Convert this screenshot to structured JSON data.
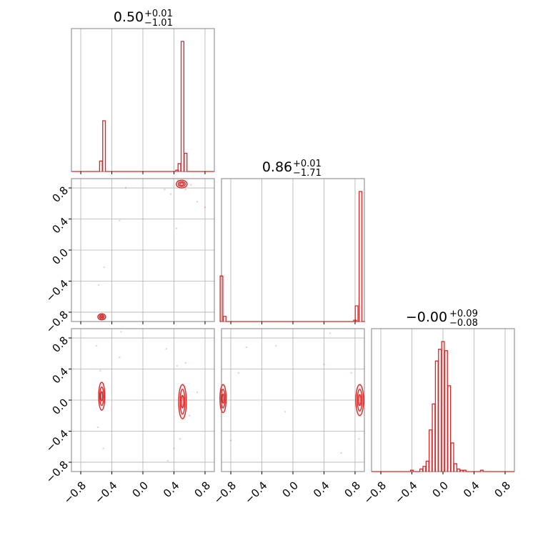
{
  "colors": {
    "line": "#d62728",
    "grid": "#b0b0b0",
    "axis": "#808080",
    "text": "#000000"
  },
  "chart_data": {
    "type": "corner",
    "grid": true,
    "tick_labels": [
      "−0.8",
      "−0.4",
      "0.0",
      "0.4",
      "0.8"
    ],
    "tick_values": [
      -0.8,
      -0.4,
      0.0,
      0.4,
      0.8
    ],
    "titles": [
      {
        "value": "0.50",
        "plus": "+0.01",
        "minus": "−1.01"
      },
      {
        "value": "0.86",
        "plus": "+0.01",
        "minus": "−1.71"
      },
      {
        "value": "−0.00",
        "plus": "+0.09",
        "minus": "−0.08"
      }
    ],
    "params": [
      {
        "range": [
          -0.92,
          0.92
        ]
      },
      {
        "range": [
          -0.92,
          0.92
        ]
      },
      {
        "range": [
          -0.92,
          0.92
        ]
      }
    ],
    "histograms": [
      {
        "param": 0,
        "bins": [
          {
            "x": -0.54,
            "h": 0.08
          },
          {
            "x": -0.5,
            "h": 0.39
          },
          {
            "x": -0.46,
            "h": 0.0
          },
          {
            "x": 0.44,
            "h": 0.01
          },
          {
            "x": 0.47,
            "h": 0.06
          },
          {
            "x": 0.51,
            "h": 1.0
          },
          {
            "x": 0.55,
            "h": 0.14
          },
          {
            "x": 0.59,
            "h": 0.0
          }
        ]
      },
      {
        "param": 1,
        "bins": [
          {
            "x": -0.92,
            "h": 0.35
          },
          {
            "x": -0.88,
            "h": 0.04
          },
          {
            "x": -0.84,
            "h": 0.0
          },
          {
            "x": 0.8,
            "h": 0.01
          },
          {
            "x": 0.82,
            "h": 0.12
          },
          {
            "x": 0.87,
            "h": 1.0
          },
          {
            "x": 0.91,
            "h": 0.0
          }
        ]
      },
      {
        "param": 2,
        "bins": [
          {
            "x": -0.4,
            "h": 0.01
          },
          {
            "x": -0.28,
            "h": 0.02
          },
          {
            "x": -0.24,
            "h": 0.04
          },
          {
            "x": -0.2,
            "h": 0.08
          },
          {
            "x": -0.16,
            "h": 0.32
          },
          {
            "x": -0.12,
            "h": 0.52
          },
          {
            "x": -0.08,
            "h": 0.85
          },
          {
            "x": -0.04,
            "h": 0.94
          },
          {
            "x": 0.0,
            "h": 1.0
          },
          {
            "x": 0.04,
            "h": 0.93
          },
          {
            "x": 0.08,
            "h": 0.66
          },
          {
            "x": 0.12,
            "h": 0.22
          },
          {
            "x": 0.16,
            "h": 0.06
          },
          {
            "x": 0.2,
            "h": 0.02
          },
          {
            "x": 0.24,
            "h": 0.01
          },
          {
            "x": 0.28,
            "h": 0.01
          },
          {
            "x": 0.5,
            "h": 0.01
          }
        ]
      }
    ],
    "contours": [
      {
        "px": 0,
        "py": 1,
        "blobs": [
          {
            "cx": 0.5,
            "cy": 0.85,
            "rx": [
              0.025,
              0.045,
              0.07
            ],
            "ry": [
              0.015,
              0.03,
              0.05
            ]
          },
          {
            "cx": -0.53,
            "cy": -0.86,
            "rx": [
              0.015,
              0.03,
              0.05
            ],
            "ry": [
              0.01,
              0.025,
              0.04
            ]
          }
        ],
        "scatter": [
          [
            -0.22,
            0.8
          ],
          [
            0.28,
            0.78
          ],
          [
            0.45,
            0.9
          ],
          [
            0.55,
            0.78
          ],
          [
            0.7,
            0.62
          ],
          [
            0.8,
            0.55
          ],
          [
            0.43,
            0.28
          ],
          [
            -0.3,
            0.38
          ],
          [
            -0.5,
            -0.22
          ],
          [
            -0.57,
            -0.45
          ],
          [
            0.62,
            0.84
          ],
          [
            0.36,
            0.72
          ]
        ]
      },
      {
        "px": 0,
        "py": 2,
        "blobs": [
          {
            "cx": -0.53,
            "cy": 0.05,
            "rx": [
              0.012,
              0.025,
              0.04
            ],
            "ry": [
              0.06,
              0.12,
              0.18
            ]
          },
          {
            "cx": 0.51,
            "cy": -0.02,
            "rx": [
              0.015,
              0.03,
              0.05
            ],
            "ry": [
              0.08,
              0.16,
              0.22
            ]
          }
        ],
        "scatter": [
          [
            -0.28,
            0.88
          ],
          [
            -0.6,
            0.7
          ],
          [
            -0.3,
            0.55
          ],
          [
            0.3,
            0.66
          ],
          [
            0.44,
            0.44
          ],
          [
            0.6,
            -0.2
          ],
          [
            -0.58,
            -0.35
          ],
          [
            -0.51,
            -0.62
          ],
          [
            0.4,
            -0.62
          ],
          [
            0.7,
            0.1
          ],
          [
            -0.55,
            0.38
          ],
          [
            0.55,
            0.48
          ],
          [
            0.48,
            -0.5
          ],
          [
            0.32,
            -0.78
          ]
        ]
      },
      {
        "px": 1,
        "py": 2,
        "blobs": [
          {
            "cx": -0.9,
            "cy": 0.02,
            "rx": [
              0.01,
              0.025,
              0.04
            ],
            "ry": [
              0.06,
              0.12,
              0.18
            ]
          },
          {
            "cx": 0.86,
            "cy": 0.0,
            "rx": [
              0.015,
              0.03,
              0.05
            ],
            "ry": [
              0.07,
              0.14,
              0.2
            ]
          }
        ],
        "scatter": [
          [
            -0.6,
            0.68
          ],
          [
            -0.22,
            0.7
          ],
          [
            0.4,
            0.46
          ],
          [
            0.75,
            0.35
          ],
          [
            0.62,
            -0.68
          ],
          [
            -0.8,
            -0.52
          ],
          [
            0.48,
            0.86
          ],
          [
            -0.1,
            -0.15
          ],
          [
            0.85,
            -0.5
          ],
          [
            -0.7,
            0.35
          ]
        ]
      }
    ]
  }
}
